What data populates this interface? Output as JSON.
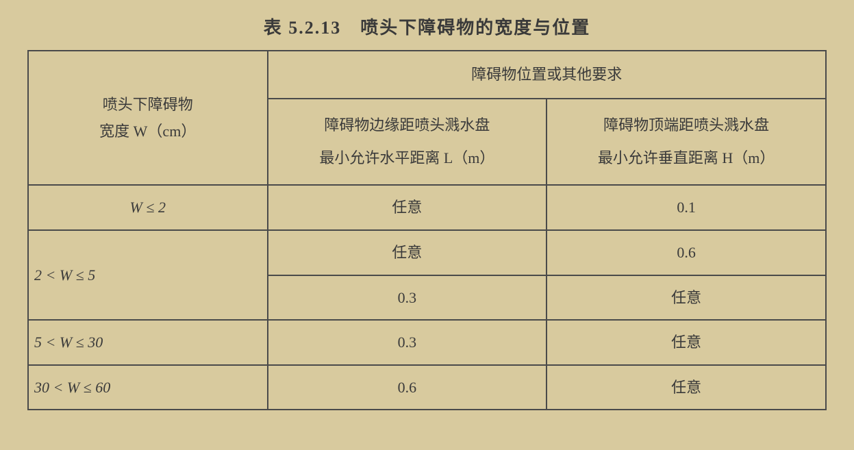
{
  "table": {
    "title": "表 5.2.13　喷头下障碍物的宽度与位置",
    "header": {
      "rowLabel_line1": "喷头下障碍物",
      "rowLabel_line2": "宽度 W（cm）",
      "groupLabel": "障碍物位置或其他要求",
      "col1_line1": "障碍物边缘距喷头溅水盘",
      "col1_line2": "最小允许水平距离 L（m）",
      "col2_line1": "障碍物顶端距喷头溅水盘",
      "col2_line2": "最小允许垂直距离 H（m）"
    },
    "rows": [
      {
        "w": "W ≤ 2",
        "L": "任意",
        "H": "0.1"
      },
      {
        "w": "2 < W ≤ 5",
        "L": "任意",
        "H": "0.6"
      },
      {
        "w": "",
        "L": "0.3",
        "H": "任意"
      },
      {
        "w": "5 < W ≤ 30",
        "L": "0.3",
        "H": "任意"
      },
      {
        "w": "30 < W ≤ 60",
        "L": "0.6",
        "H": "任意"
      }
    ]
  }
}
